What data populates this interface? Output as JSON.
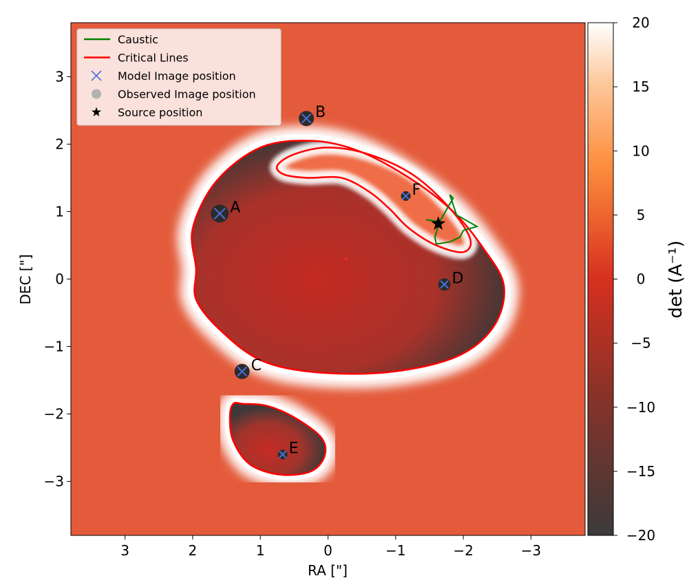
{
  "chart_data": {
    "type": "heatmap",
    "title": "",
    "xlabel": "RA [\"]",
    "ylabel": "DEC [\"]",
    "xlim": [
      3.8,
      -3.8
    ],
    "ylim": [
      -3.8,
      3.8
    ],
    "x_ticks": [
      3,
      2,
      1,
      0,
      -1,
      -2,
      -3
    ],
    "x_tick_labels": [
      "3",
      "2",
      "1",
      "0",
      "−1",
      "−2",
      "−3"
    ],
    "y_ticks": [
      3,
      2,
      1,
      0,
      -1,
      -2,
      -3
    ],
    "y_tick_labels": [
      "3",
      "2",
      "1",
      "0",
      "−1",
      "−2",
      "−3"
    ],
    "colorbar": {
      "label": "det  (A⁻¹)",
      "range": [
        -20,
        20
      ],
      "ticks": [
        20,
        15,
        10,
        5,
        0,
        -5,
        -10,
        -15,
        -20
      ],
      "tick_labels": [
        "20",
        "15",
        "10",
        "5",
        "0",
        "−5",
        "−10",
        "−15",
        "−20"
      ],
      "colormap": [
        "#3a3a3a",
        "#d7301f",
        "#fd8d3c",
        "#ffffff"
      ]
    },
    "legend": {
      "location": "upper-left",
      "entries": [
        {
          "label": "Caustic",
          "marker": "line",
          "color": "#008000"
        },
        {
          "label": "Critical Lines",
          "marker": "line",
          "color": "#ff0000"
        },
        {
          "label": "Model Image position",
          "marker": "x",
          "color": "#4d6edb"
        },
        {
          "label": "Observed Image position",
          "marker": "circle",
          "color": "#b3b3b3"
        },
        {
          "label": "Source position",
          "marker": "star",
          "color": "#000000"
        }
      ]
    },
    "images": [
      {
        "name": "A",
        "ra": 1.6,
        "dec": 0.97,
        "size": 13
      },
      {
        "name": "B",
        "ra": 0.32,
        "dec": 2.38,
        "size": 11
      },
      {
        "name": "C",
        "ra": 1.27,
        "dec": -1.37,
        "size": 11
      },
      {
        "name": "D",
        "ra": -1.72,
        "dec": -0.08,
        "size": 9
      },
      {
        "name": "E",
        "ra": 0.67,
        "dec": -2.6,
        "size": 7
      },
      {
        "name": "F",
        "ra": -1.15,
        "dec": 1.23,
        "size": 7
      }
    ],
    "source": {
      "ra": -1.63,
      "dec": 0.82
    },
    "lens_center": {
      "ra": -0.27,
      "dec": 0.3
    },
    "critical_curves": [
      {
        "name": "outer",
        "points": [
          [
            1.95,
            0.15
          ],
          [
            2.0,
            0.75
          ],
          [
            1.65,
            1.45
          ],
          [
            1.0,
            1.95
          ],
          [
            0.25,
            2.05
          ],
          [
            -0.45,
            1.9
          ],
          [
            -1.2,
            1.5
          ],
          [
            -1.85,
            1.0
          ],
          [
            -2.3,
            0.45
          ],
          [
            -2.6,
            -0.1
          ],
          [
            -2.45,
            -0.7
          ],
          [
            -1.9,
            -1.15
          ],
          [
            -0.9,
            -1.38
          ],
          [
            0.2,
            -1.38
          ],
          [
            1.0,
            -1.2
          ],
          [
            1.6,
            -0.75
          ],
          [
            1.95,
            -0.3
          ]
        ]
      },
      {
        "name": "inner",
        "points": [
          [
            0.75,
            1.68
          ],
          [
            0.5,
            1.85
          ],
          [
            0.0,
            1.95
          ],
          [
            -0.6,
            1.85
          ],
          [
            -1.25,
            1.55
          ],
          [
            -1.8,
            1.05
          ],
          [
            -2.1,
            0.6
          ],
          [
            -2.0,
            0.4
          ],
          [
            -1.6,
            0.5
          ],
          [
            -1.2,
            0.75
          ],
          [
            -0.9,
            1.05
          ],
          [
            -0.6,
            1.3
          ],
          [
            -0.2,
            1.5
          ],
          [
            0.3,
            1.5
          ],
          [
            0.65,
            1.55
          ]
        ]
      },
      {
        "name": "southern",
        "points": [
          [
            1.4,
            -1.85
          ],
          [
            1.25,
            -1.85
          ],
          [
            0.9,
            -1.88
          ],
          [
            0.5,
            -2.05
          ],
          [
            0.1,
            -2.35
          ],
          [
            0.05,
            -2.62
          ],
          [
            0.25,
            -2.85
          ],
          [
            0.7,
            -2.9
          ],
          [
            1.15,
            -2.75
          ],
          [
            1.4,
            -2.4
          ],
          [
            1.45,
            -2.05
          ]
        ]
      }
    ],
    "caustic": [
      [
        -1.65,
        0.85
      ],
      [
        -1.85,
        1.2
      ],
      [
        -1.8,
        1.25
      ],
      [
        -1.9,
        0.95
      ],
      [
        -2.2,
        0.78
      ],
      [
        -2.0,
        0.72
      ],
      [
        -1.95,
        0.62
      ],
      [
        -1.8,
        0.55
      ],
      [
        -1.6,
        0.52
      ],
      [
        -1.58,
        0.62
      ],
      [
        -1.65,
        0.85
      ],
      [
        -1.45,
        0.88
      ],
      [
        -1.65,
        0.85
      ]
    ]
  }
}
